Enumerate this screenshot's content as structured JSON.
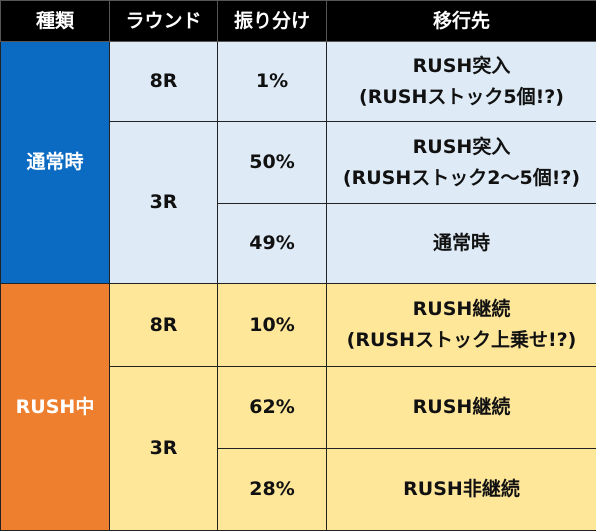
{
  "headers": [
    "種類",
    "ラウンド",
    "振り分け",
    "移行先"
  ],
  "groups": {
    "normal": {
      "label": "通常時",
      "color": "#0b6bc2",
      "row_color": "#deebf7",
      "rows": [
        {
          "round": "8R",
          "ratio": "1%",
          "dest": [
            "RUSH突入",
            "(RUSHストック5個!?)"
          ]
        },
        {
          "round": "3R",
          "ratio": "50%",
          "dest": [
            "RUSH突入",
            "(RUSHストック2～5個!?)"
          ]
        },
        {
          "ratio": "49%",
          "dest": [
            "通常時"
          ]
        }
      ]
    },
    "rush": {
      "label": "RUSH中",
      "color": "#ee7f2e",
      "row_color": "#ffe79a",
      "rows": [
        {
          "round": "8R",
          "ratio": "10%",
          "dest": [
            "RUSH継続",
            "(RUSHストック上乗せ!?)"
          ]
        },
        {
          "round": "3R",
          "ratio": "62%",
          "dest": [
            "RUSH継続"
          ]
        },
        {
          "ratio": "28%",
          "dest": [
            "RUSH非継続"
          ]
        }
      ]
    }
  }
}
